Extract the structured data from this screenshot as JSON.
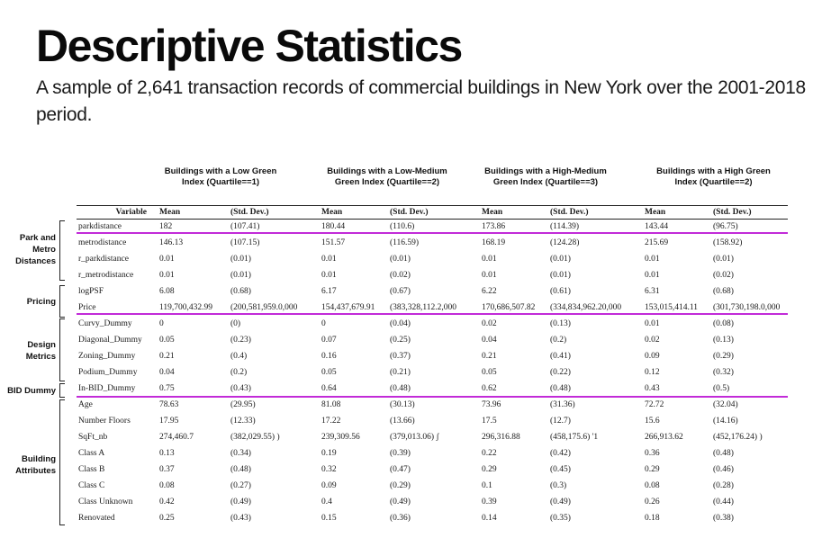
{
  "title": "Descriptive Statistics",
  "subtitle": "A sample of 2,641 transaction records of commercial buildings in New York over the  2001-2018 period.",
  "group_headers": [
    "Buildings with a Low Green Index (Quartile==1)",
    "Buildings with a Low-Medium Green Index (Quartile==2)",
    "Buildings with a High-Medium Green Index (Quartile==3)",
    "Buildings with a High Green Index (Quartile==2)"
  ],
  "column_headers": {
    "variable": "Variable",
    "mean": "Mean",
    "sd": "(Std. Dev.)"
  },
  "categories": [
    "Park and Metro Distances",
    "Pricing",
    "Design Metrics",
    "BID Dummy",
    "Building Attributes"
  ],
  "rows": [
    {
      "var": "parkdistance",
      "v": [
        "182",
        "(107.41)",
        "180.44",
        "(110.6)",
        "173.86",
        "(114.39)",
        "143.44",
        "(96.75)"
      ]
    },
    {
      "var": "metrodistance",
      "v": [
        "146.13",
        "(107.15)",
        "151.57",
        "(116.59)",
        "168.19",
        "(124.28)",
        "215.69",
        "(158.92)"
      ]
    },
    {
      "var": "r_parkdistance",
      "v": [
        "0.01",
        "(0.01)",
        "0.01",
        "(0.01)",
        "0.01",
        "(0.01)",
        "0.01",
        "(0.01)"
      ]
    },
    {
      "var": "r_metrodistance",
      "v": [
        "0.01",
        "(0.01)",
        "0.01",
        "(0.02)",
        "0.01",
        "(0.01)",
        "0.01",
        "(0.02)"
      ]
    },
    {
      "var": "logPSF",
      "v": [
        "6.08",
        "(0.68)",
        "6.17",
        "(0.67)",
        "6.22",
        "(0.61)",
        "6.31",
        "(0.68)"
      ]
    },
    {
      "var": "Price",
      "v": [
        "119,700,432.99",
        "(200,581,959.0,000",
        "154,437,679.91",
        "(383,328,112.2,000",
        "170,686,507.82",
        "(334,834,962.20,000",
        "153,015,414.11",
        "(301,730,198.0,000"
      ]
    },
    {
      "var": "Curvy_Dummy",
      "v": [
        "0",
        "(0)",
        "0",
        "(0.04)",
        "0.02",
        "(0.13)",
        "0.01",
        "(0.08)"
      ]
    },
    {
      "var": "Diagonal_Dummy",
      "v": [
        "0.05",
        "(0.23)",
        "0.07",
        "(0.25)",
        "0.04",
        "(0.2)",
        "0.02",
        "(0.13)"
      ]
    },
    {
      "var": "Zoning_Dummy",
      "v": [
        "0.21",
        "(0.4)",
        "0.16",
        "(0.37)",
        "0.21",
        "(0.41)",
        "0.09",
        "(0.29)"
      ]
    },
    {
      "var": "Podium_Dummy",
      "v": [
        "0.04",
        "(0.2)",
        "0.05",
        "(0.21)",
        "0.05",
        "(0.22)",
        "0.12",
        "(0.32)"
      ]
    },
    {
      "var": "In-BID_Dummy",
      "v": [
        "0.75",
        "(0.43)",
        "0.64",
        "(0.48)",
        "0.62",
        "(0.48)",
        "0.43",
        "(0.5)"
      ]
    },
    {
      "var": "Age",
      "v": [
        "78.63",
        "(29.95)",
        "81.08",
        "(30.13)",
        "73.96",
        "(31.36)",
        "72.72",
        "(32.04)"
      ]
    },
    {
      "var": "Number Floors",
      "v": [
        "17.95",
        "(12.33)",
        "17.22",
        "(13.66)",
        "17.5",
        "(12.7)",
        "15.6",
        "(14.16)"
      ]
    },
    {
      "var": "SqFt_nb",
      "v": [
        "274,460.7",
        "(382,029.55) )",
        "239,309.56",
        "(379,013.06) ʃ",
        "296,316.88",
        "(458,175.6)   '1",
        "266,913.62",
        "(452,176.24)  )"
      ]
    },
    {
      "var": "Class A",
      "v": [
        "0.13",
        "(0.34)",
        "0.19",
        "(0.39)",
        "0.22",
        "(0.42)",
        "0.36",
        "(0.48)"
      ]
    },
    {
      "var": "Class B",
      "v": [
        "0.37",
        "(0.48)",
        "0.32",
        "(0.47)",
        "0.29",
        "(0.45)",
        "0.29",
        "(0.46)"
      ]
    },
    {
      "var": "Class C",
      "v": [
        "0.08",
        "(0.27)",
        "0.09",
        "(0.29)",
        "0.1",
        "(0.3)",
        "0.08",
        "(0.28)"
      ]
    },
    {
      "var": "Class Unknown",
      "v": [
        "0.42",
        "(0.49)",
        "0.4",
        "(0.49)",
        "0.39",
        "(0.49)",
        "0.26",
        "(0.44)"
      ]
    },
    {
      "var": "Renovated",
      "v": [
        "0.25",
        "(0.43)",
        "0.15",
        "(0.36)",
        "0.14",
        "(0.35)",
        "0.18",
        "(0.38)"
      ]
    }
  ],
  "colors": {
    "separator": "#c22bd8",
    "rule": "#222222",
    "text": "#111111"
  }
}
